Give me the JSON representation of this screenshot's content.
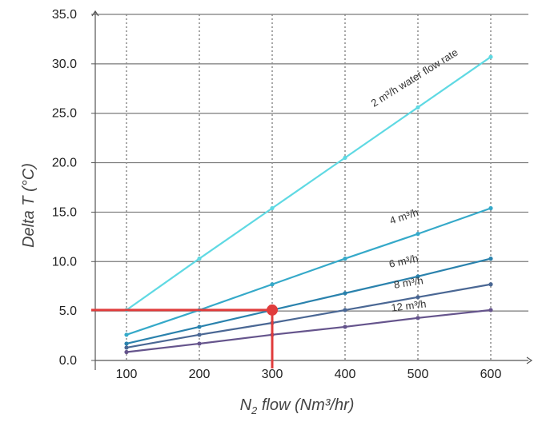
{
  "chart_data": {
    "type": "line",
    "xlabel_main": "N",
    "xlabel_sub": "2",
    "xlabel_rest": " flow (Nm³/hr)",
    "ylabel": "Delta T (°C)",
    "x": [
      100,
      200,
      300,
      400,
      500,
      600
    ],
    "x_tick_labels": [
      "100",
      "200",
      "300",
      "400",
      "500",
      "600"
    ],
    "y_tick_labels": [
      "0.0",
      "5.0",
      "10.0",
      "15.0",
      "20.0",
      "25.0",
      "30.0",
      "35.0"
    ],
    "xlim": [
      37,
      660
    ],
    "ylim": [
      0,
      35
    ],
    "grid": {
      "horizontal": "solid",
      "vertical": "dotted"
    },
    "series": [
      {
        "name": "2 m³/h water flow rate",
        "values": [
          5.1,
          10.3,
          15.4,
          20.5,
          25.6,
          30.7
        ],
        "color": "#5fd9e3"
      },
      {
        "name": "4 m³/h",
        "values": [
          2.6,
          5.1,
          7.7,
          10.3,
          12.8,
          15.4
        ],
        "color": "#35a9c9"
      },
      {
        "name": "6 m³/h",
        "values": [
          1.7,
          3.4,
          5.1,
          6.8,
          8.5,
          10.3
        ],
        "color": "#2a82ad"
      },
      {
        "name": "8 m³/h",
        "values": [
          1.3,
          2.6,
          3.8,
          5.1,
          6.4,
          7.7
        ],
        "color": "#4a6794"
      },
      {
        "name": "12 m³/h",
        "values": [
          0.85,
          1.7,
          2.6,
          3.4,
          4.3,
          5.1
        ],
        "color": "#65548c"
      }
    ],
    "highlight": {
      "x": 300,
      "y": 5.1,
      "color": "#e03c3c"
    }
  }
}
